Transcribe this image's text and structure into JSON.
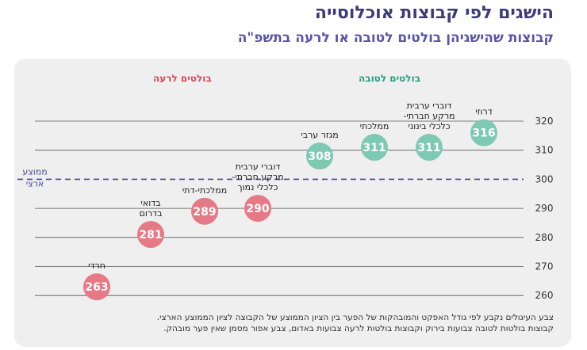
{
  "title": "הישגים לפי קבוצות אוכלוסייה",
  "subtitle": "קבוצות שהישגיהן בולטים לטובה או לרעה בתשפ\"ה",
  "legend": {
    "good": "בולטים לטובה",
    "bad": "בולטים לרעה"
  },
  "footnote": {
    "line1": "צבע העיגולים נקבע לפי גודל האפקט והמובהקות של הפער בין הציון הממוצע של הקבוצה לציון הממוצע הארצי.",
    "line2": "קבוצות בולטות לטובה צבועות בירוק וקבוצות בולטות לרעה צבועות באדום, צבע אפור מסמן שאין פער מובהק."
  },
  "colors": {
    "good": "#7dc9b1",
    "bad": "#e57a86",
    "avg_line": "#4a4a96",
    "grid": "#555555"
  },
  "chart_data": {
    "type": "scatter",
    "ylim": [
      260,
      320
    ],
    "yticks": [
      260,
      270,
      280,
      290,
      300,
      310,
      320
    ],
    "reference_line": {
      "value": 300,
      "label": [
        "ממוצע",
        "ארצי"
      ]
    },
    "points": [
      {
        "label": [
          "דרוזי"
        ],
        "value": 316,
        "group": "good"
      },
      {
        "label": [
          "דוברי ערבית",
          "מרקע חברתי-",
          "כלכלי בינוני"
        ],
        "value": 311,
        "group": "good"
      },
      {
        "label": [
          "ממלכתי"
        ],
        "value": 311,
        "group": "good"
      },
      {
        "label": [
          "מגזר ערבי"
        ],
        "value": 308,
        "group": "good"
      },
      {
        "label": [
          "דוברי ערבית",
          "מרקע חברתי-",
          "כלכלי נמוך"
        ],
        "value": 290,
        "group": "bad"
      },
      {
        "label": [
          "ממלכתי-דתי"
        ],
        "value": 289,
        "group": "bad"
      },
      {
        "label": [
          "בדואי",
          "בדרום"
        ],
        "value": 281,
        "group": "bad"
      },
      {
        "label": [
          "חרדי"
        ],
        "value": 263,
        "group": "bad"
      }
    ]
  }
}
